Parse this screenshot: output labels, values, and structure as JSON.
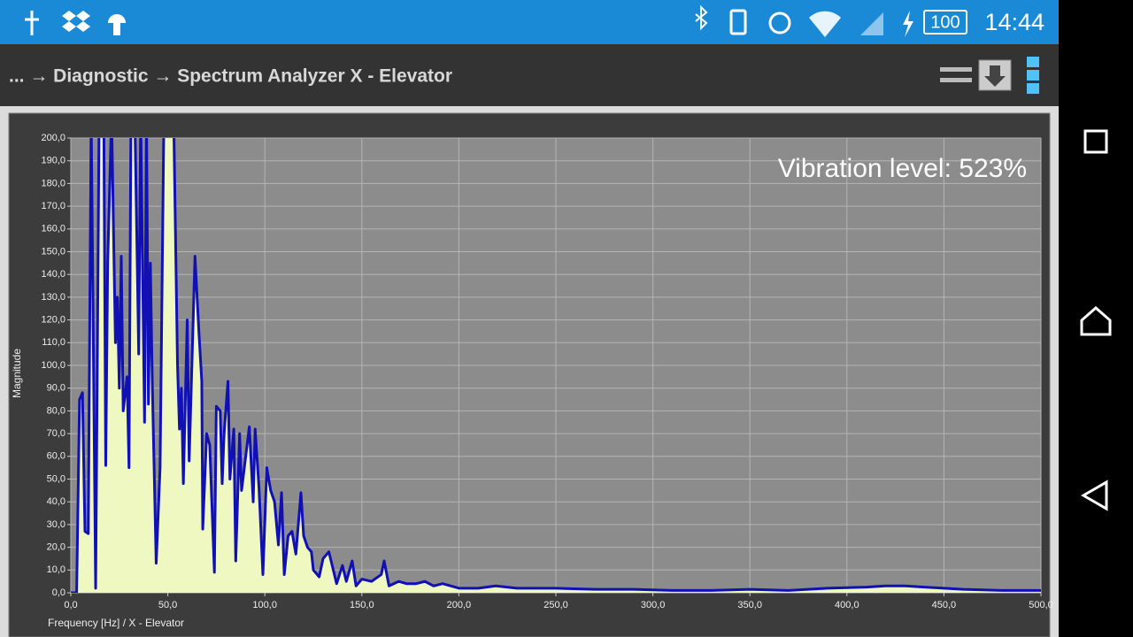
{
  "status_bar": {
    "time": "14:44",
    "battery": "100"
  },
  "toolbar": {
    "breadcrumb": "... → Diagnostic → Spectrum Analyzer X - Elevator"
  },
  "chart_data": {
    "type": "line",
    "annotation": "Vibration level:  523%",
    "x_label": "Frequency [Hz] / X - Elevator",
    "y_label": "Magnitude",
    "x": [
      0,
      3,
      4.5,
      6,
      7.3,
      9,
      10.5,
      12.8,
      14.6,
      17,
      18,
      19,
      21,
      23,
      24,
      25,
      26,
      27,
      29,
      30,
      31,
      33,
      35,
      36,
      38,
      39,
      40,
      41,
      42,
      44,
      46,
      48,
      50,
      53,
      55,
      56,
      57,
      58,
      60,
      61,
      64,
      66,
      67.5,
      68,
      70,
      71.6,
      74,
      75,
      77,
      78,
      79,
      81,
      82,
      84,
      85,
      87,
      88,
      90,
      92,
      94,
      95,
      97,
      99,
      101,
      103,
      105,
      107,
      108.6,
      110,
      112,
      114,
      116,
      118.6,
      120,
      122,
      124,
      125,
      128,
      130,
      133,
      137,
      140,
      142,
      145,
      147,
      150,
      155,
      160,
      161.5,
      164,
      169,
      173,
      178,
      182.5,
      187,
      191.6,
      200,
      210,
      219,
      230,
      250,
      270,
      290,
      310,
      330,
      350,
      370,
      390,
      410,
      420,
      430,
      440,
      450,
      460,
      480,
      500
    ],
    "series": [
      {
        "color": "#1010b4",
        "fill": "#eef8c0",
        "values": [
          0,
          0,
          85,
          88,
          27,
          26,
          210,
          2,
          210,
          210,
          56,
          145,
          210,
          110,
          130,
          90,
          148,
          80,
          95,
          55,
          210,
          210,
          105,
          210,
          75,
          210,
          83,
          145,
          92,
          13,
          55,
          210,
          210,
          210,
          100,
          72,
          90,
          48,
          120,
          58,
          148,
          115,
          93,
          28,
          70,
          65,
          9,
          82,
          80,
          48,
          70,
          93,
          50,
          72,
          14,
          70,
          45,
          59,
          73,
          40,
          72,
          46,
          8,
          55,
          45,
          40,
          21,
          44,
          8,
          25,
          27,
          17,
          44,
          25,
          20,
          18,
          10,
          7,
          15,
          18,
          4,
          12,
          5,
          14,
          3,
          6,
          5,
          8,
          14,
          3,
          5,
          4,
          4,
          5,
          3,
          4,
          2,
          2,
          3,
          2,
          2,
          1.5,
          1.5,
          1,
          1,
          1.5,
          1,
          2,
          2.5,
          3,
          3,
          2.5,
          2,
          1.5,
          1,
          1
        ]
      }
    ],
    "xlim": [
      0,
      500
    ],
    "ylim": [
      0,
      200
    ],
    "xticks": [
      {
        "value": 0,
        "label": "0,0"
      },
      {
        "value": 50,
        "label": "50,0"
      },
      {
        "value": 100,
        "label": "100,0"
      },
      {
        "value": 150,
        "label": "150,0"
      },
      {
        "value": 200,
        "label": "200,0"
      },
      {
        "value": 250,
        "label": "250,0"
      },
      {
        "value": 300,
        "label": "300,0"
      },
      {
        "value": 350,
        "label": "350,0"
      },
      {
        "value": 400,
        "label": "400,0"
      },
      {
        "value": 450,
        "label": "450,0"
      },
      {
        "value": 500,
        "label": "500,0"
      }
    ],
    "yticks": [
      {
        "value": 0,
        "label": "0,0"
      },
      {
        "value": 10,
        "label": "10,0"
      },
      {
        "value": 20,
        "label": "20,0"
      },
      {
        "value": 30,
        "label": "30,0"
      },
      {
        "value": 40,
        "label": "40,0"
      },
      {
        "value": 50,
        "label": "50,0"
      },
      {
        "value": 60,
        "label": "60,0"
      },
      {
        "value": 70,
        "label": "70,0"
      },
      {
        "value": 80,
        "label": "80,0"
      },
      {
        "value": 90,
        "label": "90,0"
      },
      {
        "value": 100,
        "label": "100,0"
      },
      {
        "value": 110,
        "label": "110,0"
      },
      {
        "value": 120,
        "label": "120,0"
      },
      {
        "value": 130,
        "label": "130,0"
      },
      {
        "value": 140,
        "label": "140,0"
      },
      {
        "value": 150,
        "label": "150,0"
      },
      {
        "value": 160,
        "label": "160,0"
      },
      {
        "value": 170,
        "label": "170,0"
      },
      {
        "value": 180,
        "label": "180,0"
      },
      {
        "value": 190,
        "label": "190,0"
      },
      {
        "value": 200,
        "label": "200,0"
      }
    ],
    "grid": true
  }
}
